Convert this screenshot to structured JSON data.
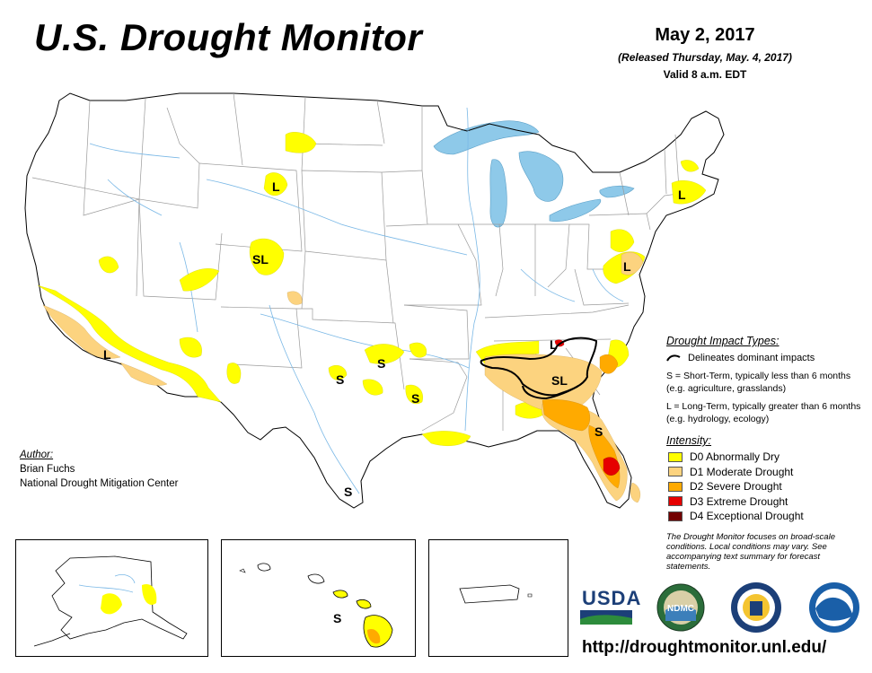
{
  "header": {
    "title": "U.S. Drought Monitor",
    "date": "May 2, 2017",
    "released": "(Released Thursday, May. 4, 2017)",
    "valid": "Valid 8 a.m. EDT"
  },
  "impact_types": {
    "title": "Drought Impact Types:",
    "boundary_label": "Delineates dominant impacts",
    "short_term": "S = Short-Term, typically less than 6 months (e.g. agriculture, grasslands)",
    "long_term": "L = Long-Term, typically greater than 6 months (e.g. hydrology, ecology)"
  },
  "intensity": {
    "title": "Intensity:",
    "levels": [
      {
        "label": "D0 Abnormally Dry",
        "color": "#ffff00"
      },
      {
        "label": "D1 Moderate Drought",
        "color": "#fcd37f"
      },
      {
        "label": "D2 Severe Drought",
        "color": "#ffaa00"
      },
      {
        "label": "D3 Extreme Drought",
        "color": "#e60000"
      },
      {
        "label": "D4 Exceptional Drought",
        "color": "#730000"
      }
    ]
  },
  "note": "The Drought Monitor focuses on broad-scale conditions. Local conditions may vary. See accompanying text summary for forecast statements.",
  "author": {
    "label": "Author:",
    "name": "Brian Fuchs",
    "org": "National Drought Mitigation Center"
  },
  "map_labels": {
    "s": "S",
    "l": "L",
    "sl": "SL"
  },
  "logos": {
    "usda": "USDA",
    "ndmc": "NDMC"
  },
  "url": "http://droughtmonitor.unl.edu/",
  "colors": {
    "water": "#a5d7f0",
    "lake": "#8ec9e9",
    "state_border": "#a0a0a0",
    "impact_line": "#000000"
  }
}
